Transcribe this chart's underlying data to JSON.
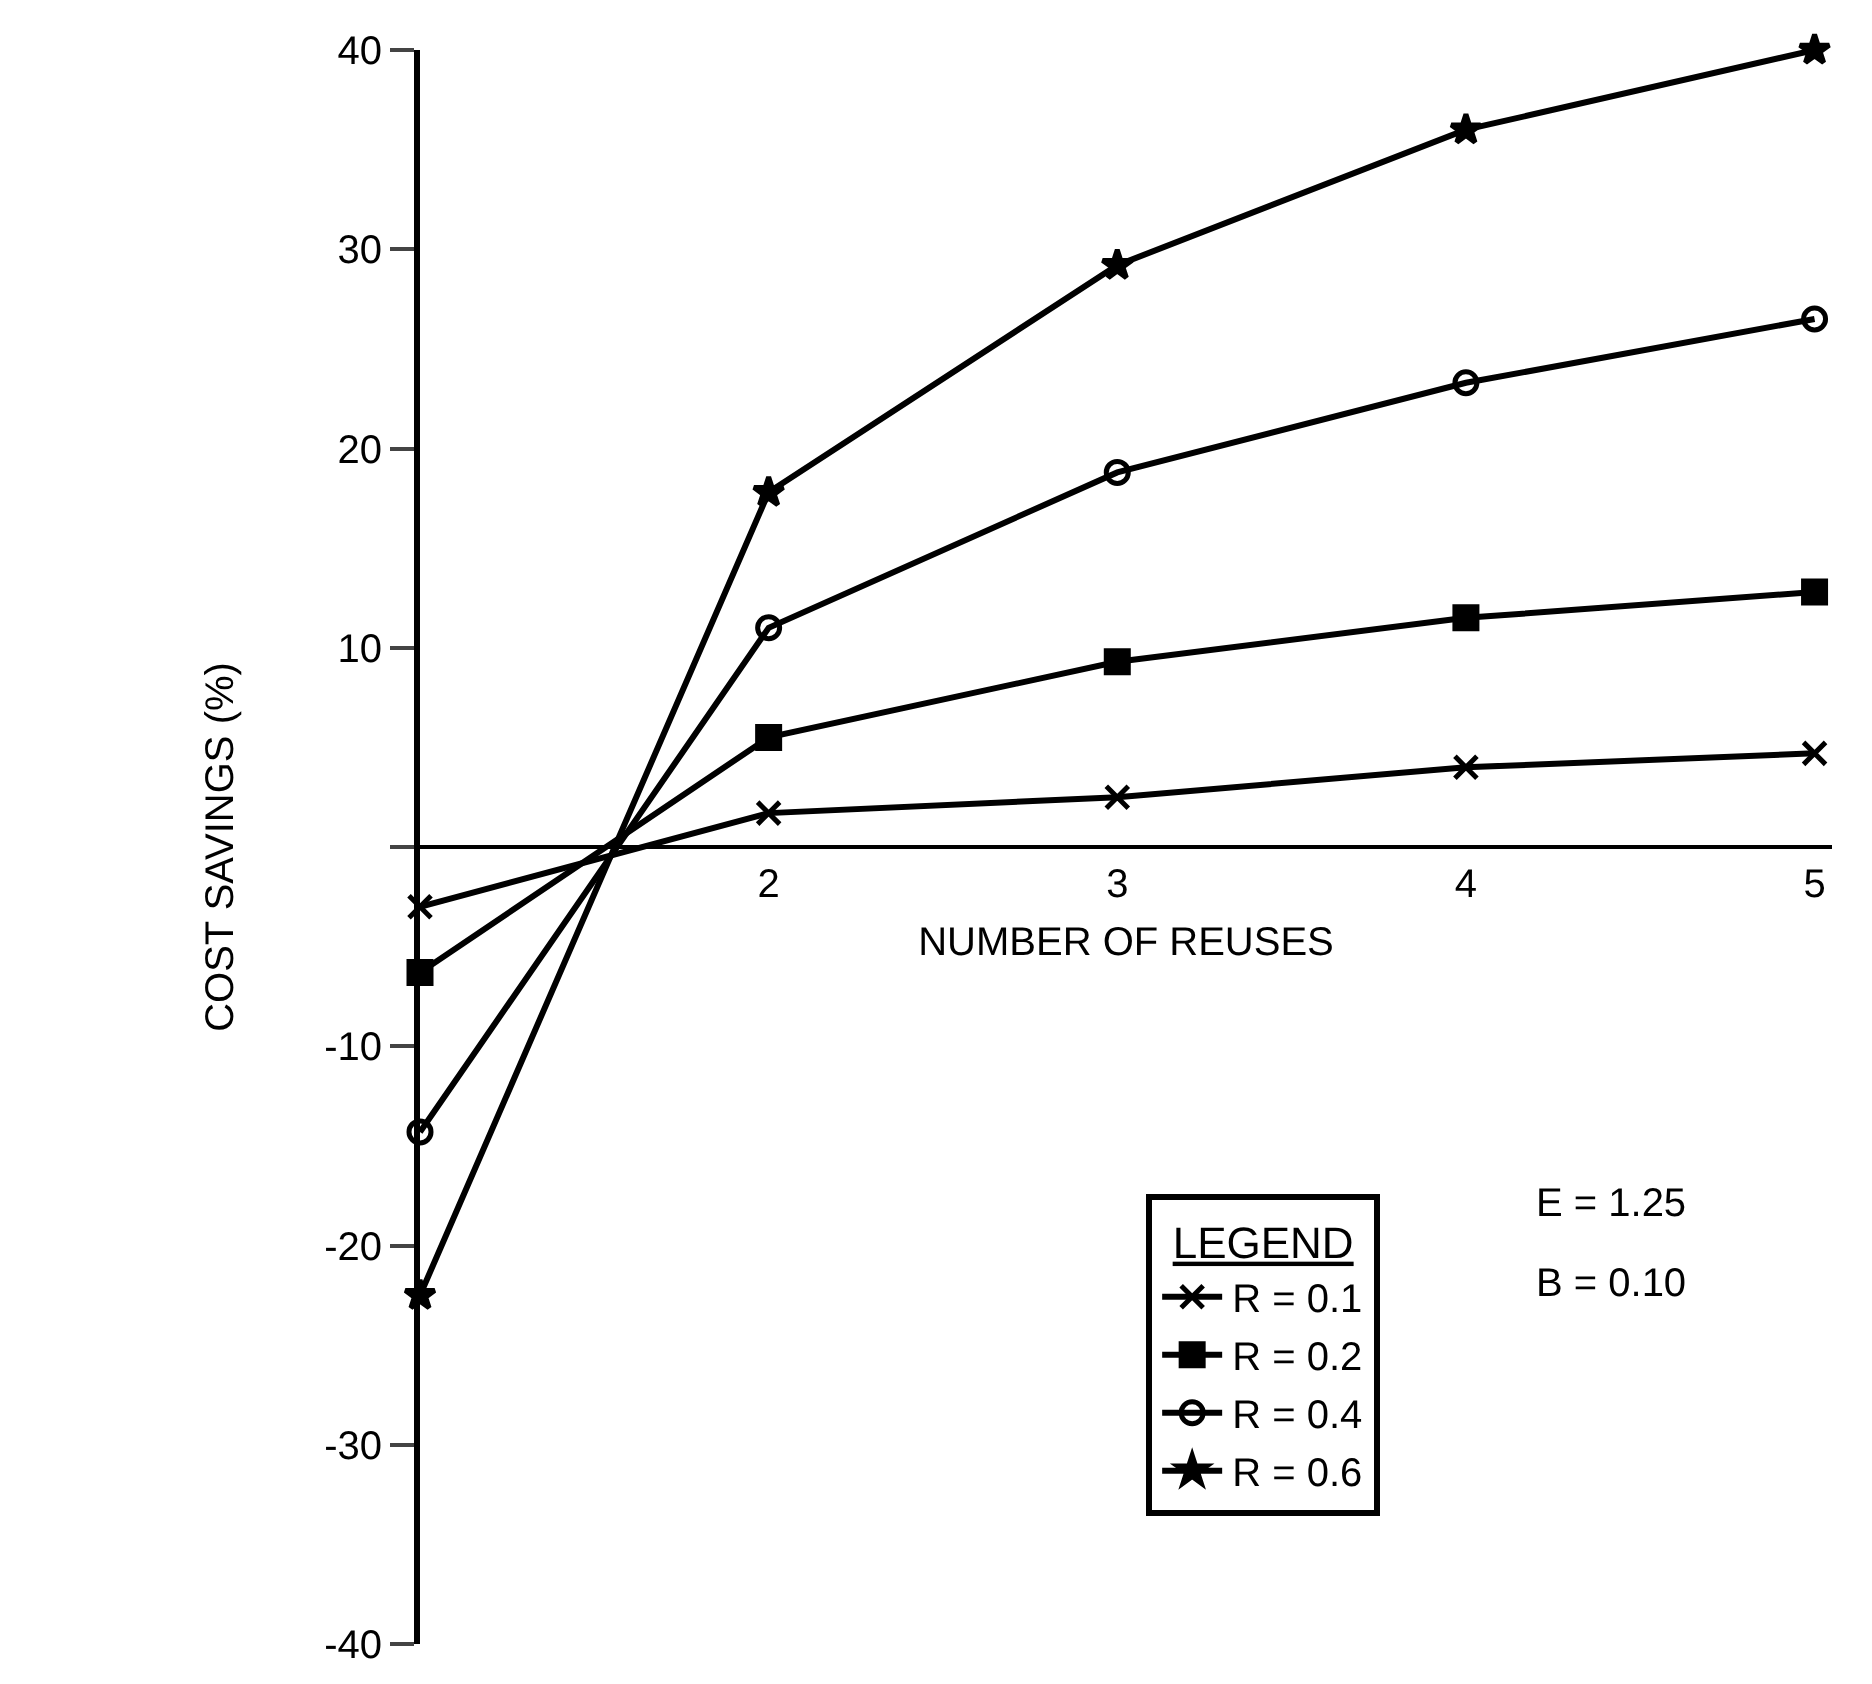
{
  "chart_data": {
    "type": "line",
    "xlabel": "NUMBER OF REUSES",
    "ylabel": "COST SAVINGS (%)",
    "legend_title": "LEGEND",
    "x": [
      1,
      2,
      3,
      4,
      5
    ],
    "xlim": [
      1,
      5.05
    ],
    "xticks": [
      2,
      3,
      4,
      5
    ],
    "ylim": [
      -40,
      40
    ],
    "yticks": [
      -40,
      -30,
      -20,
      -10,
      {
        "value": 0,
        "label": null
      },
      10,
      20,
      30,
      40
    ],
    "series": [
      {
        "name": "R = 0.1",
        "color": "#000000",
        "marker": "cross",
        "values": [
          -3,
          1.7,
          2.5,
          4,
          4.7
        ]
      },
      {
        "name": "R = 0.2",
        "color": "#000000",
        "marker": "square",
        "values": [
          -6.3,
          5.5,
          9.3,
          11.5,
          12.8
        ]
      },
      {
        "name": "R = 0.4",
        "color": "#000000",
        "marker": "circle",
        "values": [
          -14.3,
          11,
          18.8,
          23.3,
          26.5
        ]
      },
      {
        "name": "R = 0.6",
        "color": "#000000",
        "marker": "star",
        "values": [
          -22.5,
          17.8,
          29.2,
          36,
          40
        ]
      }
    ],
    "annotations": [
      "E = 1.25",
      "B = 0.10"
    ],
    "legend": "bottom right",
    "grid": false,
    "line_style": "solid"
  }
}
